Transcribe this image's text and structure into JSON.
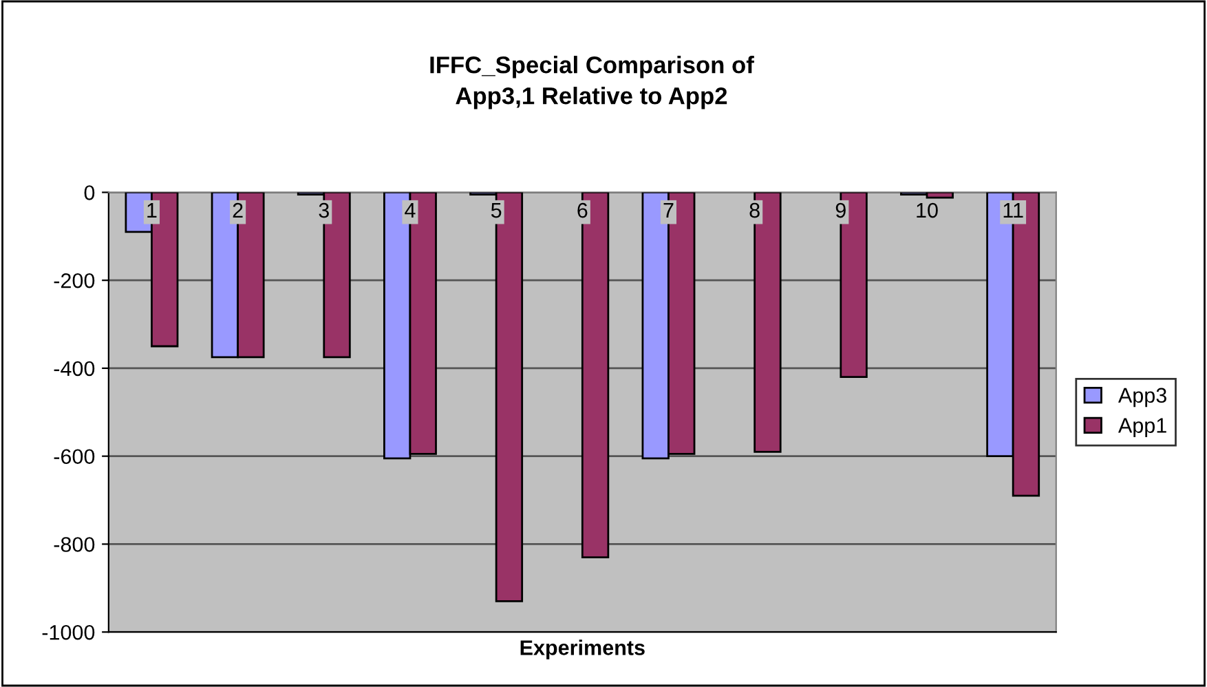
{
  "chart_data": {
    "type": "bar",
    "title": "IFFC_Special Comparison of\nApp3,1 Relative to App2",
    "xlabel": "Experiments",
    "categories": [
      "1",
      "2",
      "3",
      "4",
      "5",
      "6",
      "7",
      "8",
      "9",
      "10",
      "11"
    ],
    "series": [
      {
        "name": "App3",
        "color": "#9999ff",
        "values": [
          -90,
          -375,
          -5,
          -605,
          -5,
          null,
          -605,
          null,
          null,
          -5,
          -600
        ]
      },
      {
        "name": "App1",
        "color": "#993366",
        "values": [
          -350,
          -375,
          -375,
          -595,
          -930,
          -830,
          -595,
          -590,
          -420,
          -12,
          -690
        ]
      }
    ],
    "ylim": [
      -1000,
      0
    ],
    "yticks": [
      -1000,
      -800,
      -600,
      -400,
      -200,
      0
    ],
    "grid": "y",
    "legend": "right"
  }
}
